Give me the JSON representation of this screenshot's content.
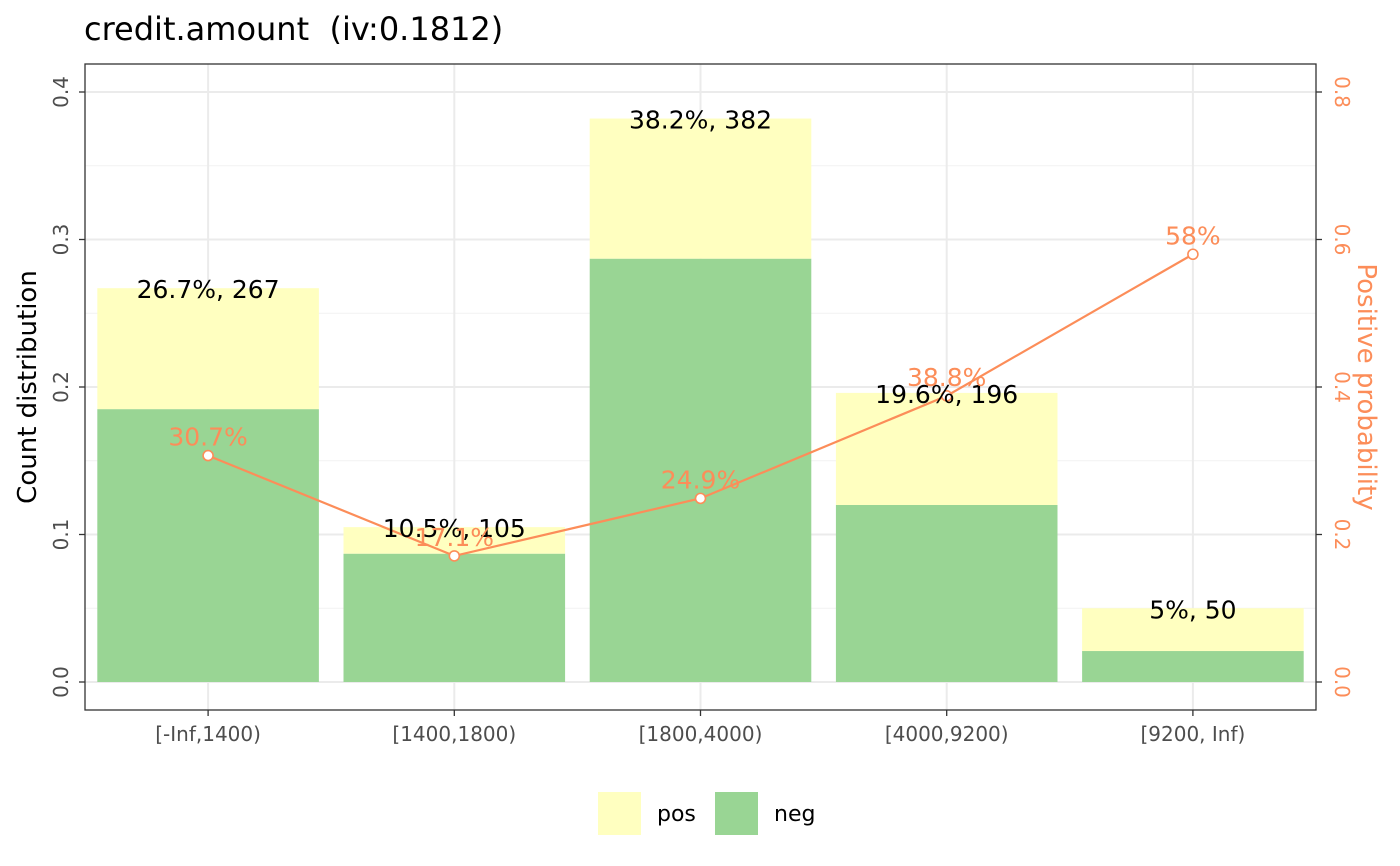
{
  "chart_data": {
    "type": "bar",
    "title": "credit.amount  (iv:0.1812)",
    "xlabel": "",
    "ylabel": "Count distribution",
    "y2label": "Positive probability",
    "ylim": [
      0,
      0.4
    ],
    "y2lim": [
      0,
      0.8
    ],
    "yticks": [
      "0.0",
      "0.1",
      "0.2",
      "0.3",
      "0.4"
    ],
    "y2ticks": [
      "0.0",
      "0.2",
      "0.4",
      "0.6",
      "0.8"
    ],
    "grid": true,
    "legend_position": "bottom",
    "stacked": true,
    "categories": [
      "[-Inf,1400)",
      "[1400,1800)",
      "[1800,4000)",
      "[4000,9200)",
      "[9200, Inf)"
    ],
    "series": [
      {
        "name": "pos",
        "color": "#ffffc0",
        "values": [
          0.082,
          0.018,
          0.095,
          0.076,
          0.029
        ]
      },
      {
        "name": "neg",
        "color": "#99d594",
        "values": [
          0.185,
          0.087,
          0.287,
          0.12,
          0.021
        ]
      }
    ],
    "bar_labels": [
      "26.7%, 267",
      "10.5%, 105",
      "38.2%, 382",
      "19.6%, 196",
      "5%, 50"
    ],
    "line": {
      "axis": "secondary",
      "color": "#fc8d59",
      "values": [
        0.307,
        0.171,
        0.249,
        0.388,
        0.58
      ],
      "labels": [
        "30.7%",
        "17.1%",
        "24.9%",
        "38.8%",
        "58%"
      ]
    }
  }
}
